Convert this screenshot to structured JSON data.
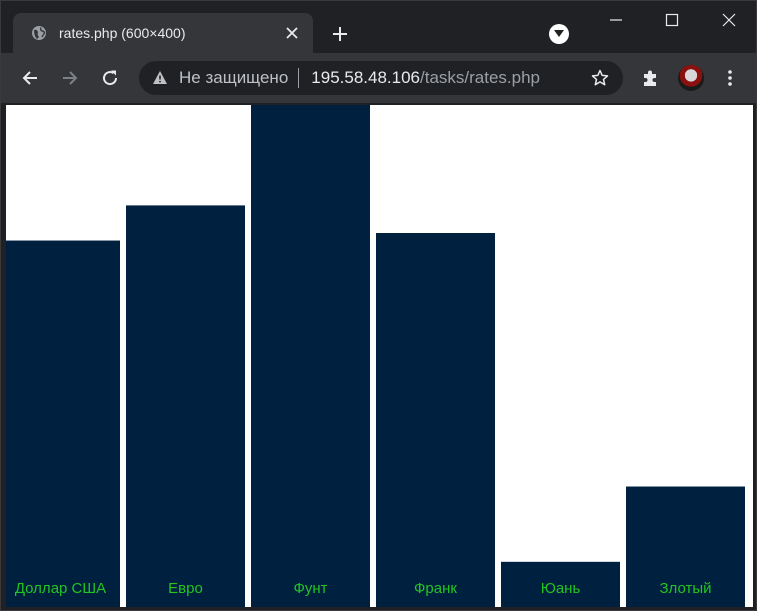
{
  "browser": {
    "tab": {
      "title": "rates.php (600×400)"
    },
    "address_bar": {
      "security_label": "Не защищено",
      "host": "195.58.48.106",
      "path": "/tasks/rates.php"
    }
  },
  "colors": {
    "bar": "#00203f",
    "label": "#22c422",
    "page_background": "#ffffff"
  },
  "chart_data": {
    "type": "bar",
    "categories": [
      "Доллар США",
      "Евро",
      "Фунт",
      "Франк",
      "Юань",
      "Злотый"
    ],
    "values": [
      73,
      80,
      100,
      74.5,
      9,
      24
    ],
    "ylim": [
      0,
      100
    ]
  }
}
